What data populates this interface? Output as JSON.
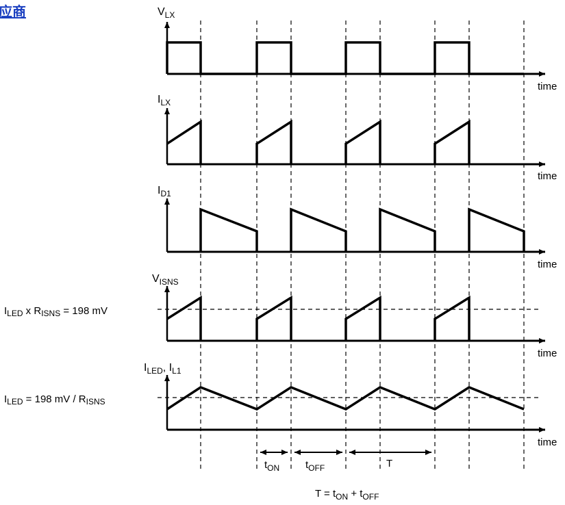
{
  "header_link": "供应商",
  "signals": {
    "vlx": {
      "main": "V",
      "sub": "LX"
    },
    "ilx": {
      "main": "I",
      "sub": "LX"
    },
    "id1": {
      "main": "I",
      "sub": "D1"
    },
    "visns": {
      "main": "V",
      "sub": "ISNS"
    },
    "iled_il1": {
      "main1": "I",
      "sub1": "LED",
      "sep": ", ",
      "main2": "I",
      "sub2": "L1"
    }
  },
  "axis_label": "time",
  "annotations": {
    "visns_ref": {
      "i": "I",
      "led": "LED",
      "x": " x  R",
      "isns": "ISNS",
      "value": " = 198 mV"
    },
    "iled_ref": {
      "i": "I",
      "led": "LED",
      "value": " = 198 mV /  R",
      "isns": "ISNS"
    }
  },
  "timing": {
    "ton": {
      "t": "t",
      "sub": "ON"
    },
    "toff": {
      "t": "t",
      "sub": "OFF"
    },
    "period": "T",
    "equation": {
      "lhs": "T = t",
      "on": "ON",
      "plus": " + t",
      "off": "OFF"
    }
  }
}
